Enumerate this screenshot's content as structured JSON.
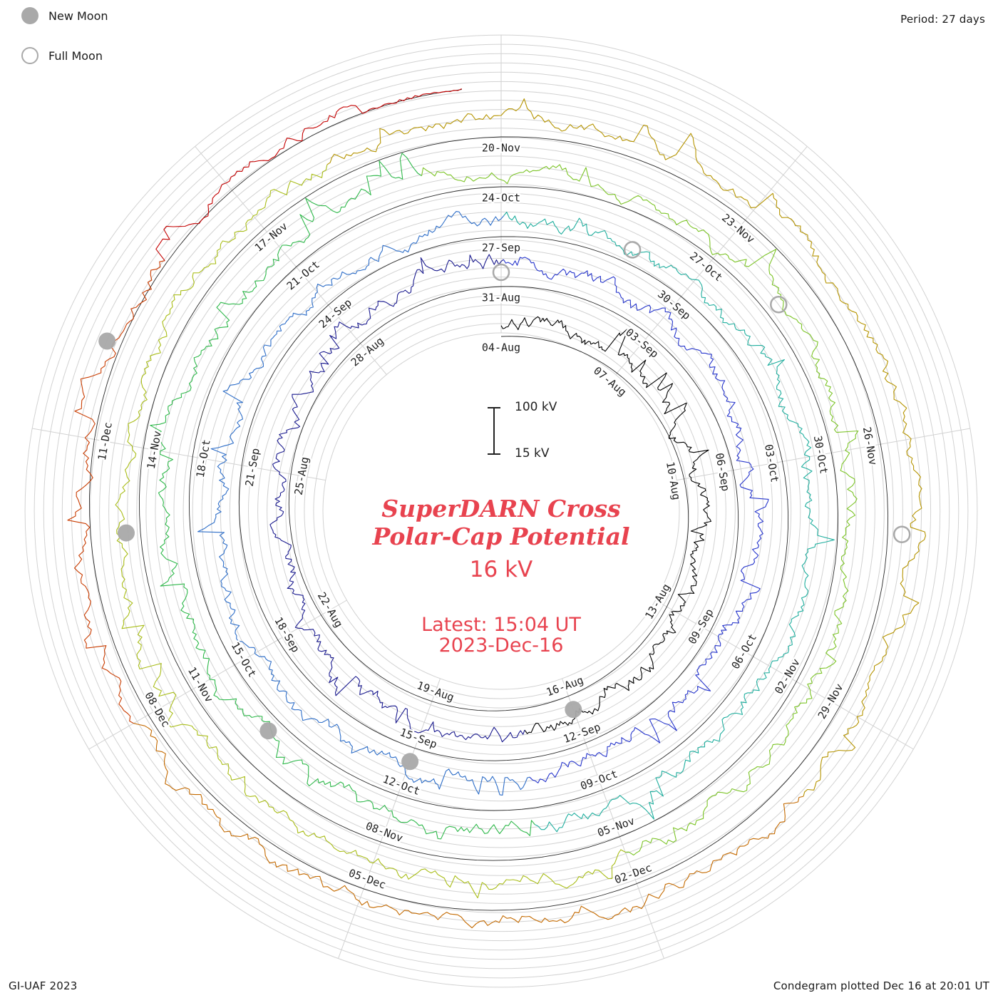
{
  "page": {
    "legend": {
      "new_moon": "New Moon",
      "full_moon": "Full Moon"
    },
    "top_right": "Period: 27 days",
    "bottom_left": "GI-UAF 2023",
    "bottom_right": "Condegram plotted Dec 16 at 20:01 UT"
  },
  "center": {
    "title_line1": "SuperDARN Cross",
    "title_line2": "Polar-Cap Potential",
    "value": "16 kV",
    "latest_line1": "Latest: 15:04 UT",
    "latest_line2": "2023-Dec-16",
    "scale_top": "100 kV",
    "scale_bottom": "15 kV"
  },
  "chart_data": {
    "type": "line",
    "subtype": "condegram-spiral-polar-time-series",
    "title": "SuperDARN Cross Polar-Cap Potential",
    "units": "kV",
    "period_days": 27,
    "tick_interval_days": 3,
    "start_date": "2023-08-04",
    "latest": {
      "date": "2023-Dec-16",
      "time_ut": "15:04",
      "value_kv": 16
    },
    "scale_kv": {
      "min": 15,
      "max": 100
    },
    "layout": {
      "direction": "clockwise",
      "start_angle": "top",
      "grid": "on"
    },
    "date_labels": [
      "04-Aug",
      "07-Aug",
      "10-Aug",
      "13-Aug",
      "16-Aug",
      "19-Aug",
      "22-Aug",
      "25-Aug",
      "28-Aug",
      "31-Aug",
      "03-Sep",
      "06-Sep",
      "09-Sep",
      "12-Sep",
      "15-Sep",
      "18-Sep",
      "21-Sep",
      "24-Sep",
      "27-Sep",
      "30-Sep",
      "03-Oct",
      "06-Oct",
      "09-Oct",
      "12-Oct",
      "15-Oct",
      "18-Oct",
      "21-Oct",
      "24-Oct",
      "27-Oct",
      "30-Oct",
      "02-Nov",
      "05-Nov",
      "08-Nov",
      "11-Nov",
      "14-Nov",
      "17-Nov",
      "20-Nov",
      "23-Nov",
      "26-Nov",
      "29-Nov",
      "02-Dec",
      "05-Dec",
      "08-Dec",
      "11-Dec"
    ],
    "envelope_kv_per_tick": [
      40,
      46,
      38,
      35,
      50,
      57,
      44,
      39,
      47,
      60,
      52,
      45,
      41,
      48,
      56,
      62,
      50,
      43,
      39,
      46,
      54,
      49,
      43,
      51,
      58,
      64,
      52,
      46,
      42,
      38,
      45,
      53,
      60,
      55,
      48,
      42,
      47,
      55,
      61,
      53,
      46,
      41,
      37,
      33,
      30
    ],
    "moon_events": {
      "new_moon_days": [
        12,
        42,
        71,
        101,
        130
      ],
      "full_moon_days": [
        27,
        56,
        85,
        115
      ]
    },
    "colors": {
      "palette": [
        {
          "day": 0,
          "color": "#000000"
        },
        {
          "day": 13,
          "color": "#1b1b8f"
        },
        {
          "day": 27,
          "color": "#2736cc"
        },
        {
          "day": 40,
          "color": "#2e6ec8"
        },
        {
          "day": 54,
          "color": "#1fae9e"
        },
        {
          "day": 67,
          "color": "#2eb84a"
        },
        {
          "day": 80,
          "color": "#7cc427"
        },
        {
          "day": 93,
          "color": "#a9bd18"
        },
        {
          "day": 106,
          "color": "#b59400"
        },
        {
          "day": 118,
          "color": "#c46a00"
        },
        {
          "day": 126,
          "color": "#c93c00"
        },
        {
          "day": 131,
          "color": "#c40000"
        }
      ],
      "grid": "#d2d2d2",
      "baseline": "#2a2a2a",
      "moon_gray": "#a9a9a9",
      "title_red": "#e8434f"
    }
  }
}
